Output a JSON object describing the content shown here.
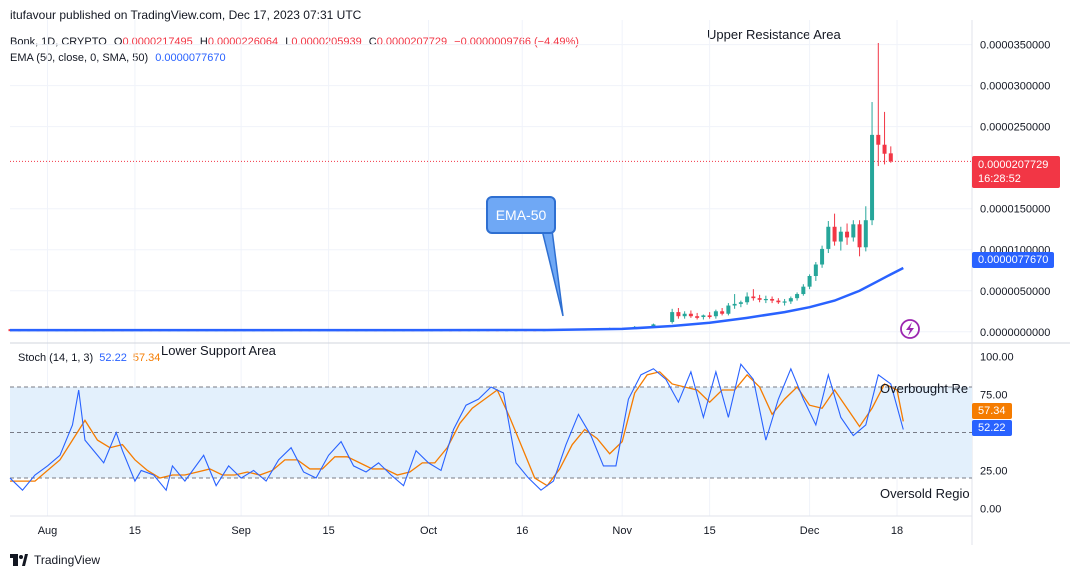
{
  "publisher_line": "itufavour published on TradingView.com, Dec 17, 2023 07:31 UTC",
  "symbol_line": {
    "symbol": "Bonk, 1D, CRYPTO",
    "o_label": "O",
    "o_value": "0.0000217495",
    "h_label": "H",
    "h_value": "0.0000226064",
    "l_label": "L",
    "l_value": "0.0000205939",
    "c_label": "C",
    "c_value": "0.0000207729",
    "change": "−0.0000009766 (−4.49%)"
  },
  "ema_line": {
    "label": "EMA (50, close, 0, SMA, 50)",
    "value": "0.0000077670"
  },
  "annotations": {
    "upper": "Upper Resistance Area",
    "lower": "Lower Support Area",
    "ema_callout": "EMA-50",
    "overbought": "Overbought Re",
    "oversold": "Oversold Regio"
  },
  "price_tag": {
    "price": "0.0000207729",
    "countdown": "16:28:52"
  },
  "ema_tag": "0.0000077670",
  "stoch_legend": {
    "label": "Stoch (14, 1, 3)",
    "k": "52.22",
    "d": "57.34"
  },
  "stoch_tags": {
    "d": "57.34",
    "k": "52.22"
  },
  "footer": "TradingView",
  "colors": {
    "up": "#26a69a",
    "down": "#f23645",
    "ema": "#2962ff",
    "k": "#2962ff",
    "d": "#f57c00",
    "band": "#e3f0fc"
  },
  "chart_data": [
    {
      "type": "candlestick",
      "title": "Bonk, 1D, CRYPTO",
      "y_axis_ticks": [
        "0.0000000000",
        "0.0000050000",
        "0.0000100000",
        "0.0000150000",
        "0.0000250000",
        "0.0000300000",
        "0.0000350000"
      ],
      "y_axis_tick_values": [
        0,
        5,
        10,
        15,
        25,
        30,
        35
      ],
      "unit_note": "values in 1e-6",
      "ylim": [
        -1,
        38
      ],
      "x_tick_labels": [
        "Aug",
        "15",
        "Sep",
        "15",
        "Oct",
        "16",
        "Nov",
        "15",
        "Dec",
        "18"
      ],
      "x_tick_days": [
        0,
        14,
        31,
        45,
        61,
        76,
        92,
        106,
        122,
        136
      ],
      "x_range_days": [
        -6,
        148
      ],
      "candles": [
        {
          "d": -6,
          "o": 0.2,
          "h": 0.25,
          "l": 0.15,
          "c": 0.2
        },
        {
          "d": 0,
          "o": 0.2,
          "h": 0.25,
          "l": 0.15,
          "c": 0.2
        },
        {
          "d": 30,
          "o": 0.2,
          "h": 0.25,
          "l": 0.15,
          "c": 0.2
        },
        {
          "d": 60,
          "o": 0.2,
          "h": 0.25,
          "l": 0.15,
          "c": 0.2
        },
        {
          "d": 80,
          "o": 0.2,
          "h": 0.3,
          "l": 0.15,
          "c": 0.25
        },
        {
          "d": 86,
          "o": 0.25,
          "h": 0.35,
          "l": 0.2,
          "c": 0.3
        },
        {
          "d": 90,
          "o": 0.3,
          "h": 0.5,
          "l": 0.25,
          "c": 0.45
        },
        {
          "d": 94,
          "o": 0.5,
          "h": 0.7,
          "l": 0.4,
          "c": 0.6
        },
        {
          "d": 97,
          "o": 0.6,
          "h": 1.0,
          "l": 0.5,
          "c": 0.9
        },
        {
          "d": 100,
          "o": 1.2,
          "h": 2.8,
          "l": 1.0,
          "c": 2.4
        },
        {
          "d": 101,
          "o": 2.4,
          "h": 2.9,
          "l": 1.6,
          "c": 1.9
        },
        {
          "d": 102,
          "o": 1.9,
          "h": 2.5,
          "l": 1.6,
          "c": 2.2
        },
        {
          "d": 103,
          "o": 2.2,
          "h": 2.6,
          "l": 1.7,
          "c": 1.9
        },
        {
          "d": 104,
          "o": 1.9,
          "h": 2.3,
          "l": 1.5,
          "c": 1.7
        },
        {
          "d": 105,
          "o": 1.8,
          "h": 2.1,
          "l": 1.5,
          "c": 2.0
        },
        {
          "d": 106,
          "o": 2.0,
          "h": 2.4,
          "l": 1.6,
          "c": 1.8
        },
        {
          "d": 107,
          "o": 1.9,
          "h": 2.7,
          "l": 1.6,
          "c": 2.5
        },
        {
          "d": 108,
          "o": 2.5,
          "h": 2.9,
          "l": 2.0,
          "c": 2.2
        },
        {
          "d": 109,
          "o": 2.2,
          "h": 3.5,
          "l": 2.0,
          "c": 3.2
        },
        {
          "d": 110,
          "o": 3.2,
          "h": 4.6,
          "l": 2.8,
          "c": 3.4
        },
        {
          "d": 111,
          "o": 3.4,
          "h": 3.8,
          "l": 3.0,
          "c": 3.6
        },
        {
          "d": 112,
          "o": 3.6,
          "h": 4.8,
          "l": 3.3,
          "c": 4.3
        },
        {
          "d": 113,
          "o": 4.3,
          "h": 5.2,
          "l": 3.8,
          "c": 4.1
        },
        {
          "d": 114,
          "o": 4.1,
          "h": 4.5,
          "l": 3.6,
          "c": 3.9
        },
        {
          "d": 115,
          "o": 3.9,
          "h": 4.4,
          "l": 3.5,
          "c": 4.0
        },
        {
          "d": 116,
          "o": 4.0,
          "h": 4.3,
          "l": 3.5,
          "c": 3.8
        },
        {
          "d": 117,
          "o": 3.8,
          "h": 4.1,
          "l": 3.4,
          "c": 3.6
        },
        {
          "d": 118,
          "o": 3.6,
          "h": 4.0,
          "l": 3.2,
          "c": 3.7
        },
        {
          "d": 119,
          "o": 3.7,
          "h": 4.3,
          "l": 3.4,
          "c": 4.1
        },
        {
          "d": 120,
          "o": 4.1,
          "h": 4.8,
          "l": 3.8,
          "c": 4.6
        },
        {
          "d": 121,
          "o": 4.6,
          "h": 5.8,
          "l": 4.4,
          "c": 5.5
        },
        {
          "d": 122,
          "o": 5.5,
          "h": 7.0,
          "l": 5.2,
          "c": 6.8
        },
        {
          "d": 123,
          "o": 6.8,
          "h": 8.5,
          "l": 6.2,
          "c": 8.2
        },
        {
          "d": 124,
          "o": 8.2,
          "h": 10.5,
          "l": 7.8,
          "c": 10.1
        },
        {
          "d": 125,
          "o": 10.1,
          "h": 13.5,
          "l": 9.6,
          "c": 12.8
        },
        {
          "d": 126,
          "o": 12.8,
          "h": 14.4,
          "l": 10.5,
          "c": 11.0
        },
        {
          "d": 127,
          "o": 11.0,
          "h": 12.8,
          "l": 9.9,
          "c": 12.2
        },
        {
          "d": 128,
          "o": 12.2,
          "h": 13.2,
          "l": 10.6,
          "c": 11.5
        },
        {
          "d": 129,
          "o": 11.5,
          "h": 13.6,
          "l": 11.0,
          "c": 13.1
        },
        {
          "d": 130,
          "o": 13.1,
          "h": 13.6,
          "l": 9.2,
          "c": 10.3
        },
        {
          "d": 131,
          "o": 10.3,
          "h": 15.3,
          "l": 9.8,
          "c": 13.6
        },
        {
          "d": 132,
          "o": 13.6,
          "h": 28.0,
          "l": 13.0,
          "c": 24.0
        },
        {
          "d": 133,
          "o": 24.0,
          "h": 35.2,
          "l": 20.2,
          "c": 22.8
        },
        {
          "d": 134,
          "o": 22.8,
          "h": 26.8,
          "l": 20.4,
          "c": 21.7
        },
        {
          "d": 135,
          "o": 21.75,
          "h": 22.6,
          "l": 20.6,
          "c": 20.77
        }
      ],
      "ema50": [
        [
          -6,
          0.2
        ],
        [
          30,
          0.2
        ],
        [
          60,
          0.2
        ],
        [
          80,
          0.22
        ],
        [
          92,
          0.35
        ],
        [
          100,
          0.7
        ],
        [
          106,
          1.1
        ],
        [
          112,
          1.7
        ],
        [
          118,
          2.4
        ],
        [
          122,
          3.0
        ],
        [
          126,
          3.8
        ],
        [
          130,
          5.0
        ],
        [
          133,
          6.2
        ],
        [
          135,
          7.0
        ],
        [
          137,
          7.77
        ]
      ],
      "last_close": 20.7729
    },
    {
      "type": "line",
      "title": "Stoch (14, 1, 3)",
      "y_axis_ticks": [
        "0.00",
        "25.00",
        "75.00",
        "100.00"
      ],
      "y_axis_tick_values": [
        0,
        25,
        75,
        100
      ],
      "levels": [
        80,
        50,
        20
      ],
      "ylim": [
        -5,
        107
      ],
      "series": [
        {
          "name": "%K",
          "values": [
            [
              -6,
              20
            ],
            [
              -4,
              12
            ],
            [
              -2,
              22
            ],
            [
              0,
              28
            ],
            [
              2,
              35
            ],
            [
              4,
              55
            ],
            [
              5,
              78
            ],
            [
              6,
              45
            ],
            [
              8,
              35
            ],
            [
              9,
              30
            ],
            [
              11,
              50
            ],
            [
              12,
              38
            ],
            [
              14,
              18
            ],
            [
              15,
              25
            ],
            [
              17,
              22
            ],
            [
              19,
              12
            ],
            [
              20,
              28
            ],
            [
              22,
              18
            ],
            [
              25,
              35
            ],
            [
              27,
              15
            ],
            [
              29,
              28
            ],
            [
              31,
              20
            ],
            [
              33,
              25
            ],
            [
              35,
              18
            ],
            [
              37,
              32
            ],
            [
              39,
              40
            ],
            [
              41,
              24
            ],
            [
              43,
              20
            ],
            [
              45,
              35
            ],
            [
              47,
              44
            ],
            [
              49,
              28
            ],
            [
              51,
              24
            ],
            [
              53,
              30
            ],
            [
              55,
              22
            ],
            [
              57,
              15
            ],
            [
              59,
              38
            ],
            [
              61,
              30
            ],
            [
              63,
              25
            ],
            [
              65,
              52
            ],
            [
              67,
              68
            ],
            [
              69,
              72
            ],
            [
              71,
              80
            ],
            [
              73,
              76
            ],
            [
              75,
              30
            ],
            [
              77,
              20
            ],
            [
              79,
              12
            ],
            [
              81,
              18
            ],
            [
              83,
              42
            ],
            [
              85,
              62
            ],
            [
              87,
              48
            ],
            [
              89,
              28
            ],
            [
              91,
              28
            ],
            [
              93,
              72
            ],
            [
              95,
              88
            ],
            [
              97,
              92
            ],
            [
              99,
              85
            ],
            [
              101,
              70
            ],
            [
              103,
              90
            ],
            [
              105,
              60
            ],
            [
              107,
              90
            ],
            [
              109,
              60
            ],
            [
              111,
              95
            ],
            [
              113,
              85
            ],
            [
              115,
              45
            ],
            [
              117,
              72
            ],
            [
              119,
              92
            ],
            [
              121,
              72
            ],
            [
              123,
              55
            ],
            [
              125,
              88
            ],
            [
              127,
              60
            ],
            [
              129,
              48
            ],
            [
              131,
              55
            ],
            [
              133,
              88
            ],
            [
              135,
              82
            ],
            [
              137,
              52
            ]
          ]
        },
        {
          "name": "%D",
          "values": [
            [
              -6,
              18
            ],
            [
              -2,
              18
            ],
            [
              2,
              32
            ],
            [
              4,
              45
            ],
            [
              6,
              58
            ],
            [
              8,
              45
            ],
            [
              10,
              40
            ],
            [
              12,
              42
            ],
            [
              14,
              32
            ],
            [
              16,
              25
            ],
            [
              18,
              20
            ],
            [
              20,
              22
            ],
            [
              22,
              22
            ],
            [
              24,
              24
            ],
            [
              26,
              26
            ],
            [
              28,
              22
            ],
            [
              30,
              22
            ],
            [
              32,
              24
            ],
            [
              34,
              22
            ],
            [
              36,
              25
            ],
            [
              38,
              32
            ],
            [
              40,
              32
            ],
            [
              42,
              26
            ],
            [
              44,
              26
            ],
            [
              46,
              34
            ],
            [
              48,
              34
            ],
            [
              50,
              30
            ],
            [
              52,
              26
            ],
            [
              54,
              26
            ],
            [
              56,
              22
            ],
            [
              58,
              24
            ],
            [
              60,
              30
            ],
            [
              62,
              30
            ],
            [
              64,
              40
            ],
            [
              66,
              56
            ],
            [
              68,
              66
            ],
            [
              70,
              72
            ],
            [
              72,
              78
            ],
            [
              74,
              60
            ],
            [
              76,
              40
            ],
            [
              78,
              20
            ],
            [
              80,
              15
            ],
            [
              82,
              26
            ],
            [
              84,
              42
            ],
            [
              86,
              52
            ],
            [
              88,
              46
            ],
            [
              90,
              36
            ],
            [
              92,
              44
            ],
            [
              94,
              76
            ],
            [
              96,
              88
            ],
            [
              98,
              90
            ],
            [
              100,
              82
            ],
            [
              102,
              80
            ],
            [
              104,
              78
            ],
            [
              106,
              70
            ],
            [
              108,
              78
            ],
            [
              110,
              78
            ],
            [
              112,
              88
            ],
            [
              114,
              80
            ],
            [
              116,
              62
            ],
            [
              118,
              72
            ],
            [
              120,
              80
            ],
            [
              122,
              68
            ],
            [
              124,
              66
            ],
            [
              126,
              78
            ],
            [
              128,
              66
            ],
            [
              130,
              54
            ],
            [
              132,
              66
            ],
            [
              134,
              82
            ],
            [
              136,
              78
            ],
            [
              137,
              57.34
            ]
          ]
        }
      ]
    }
  ]
}
